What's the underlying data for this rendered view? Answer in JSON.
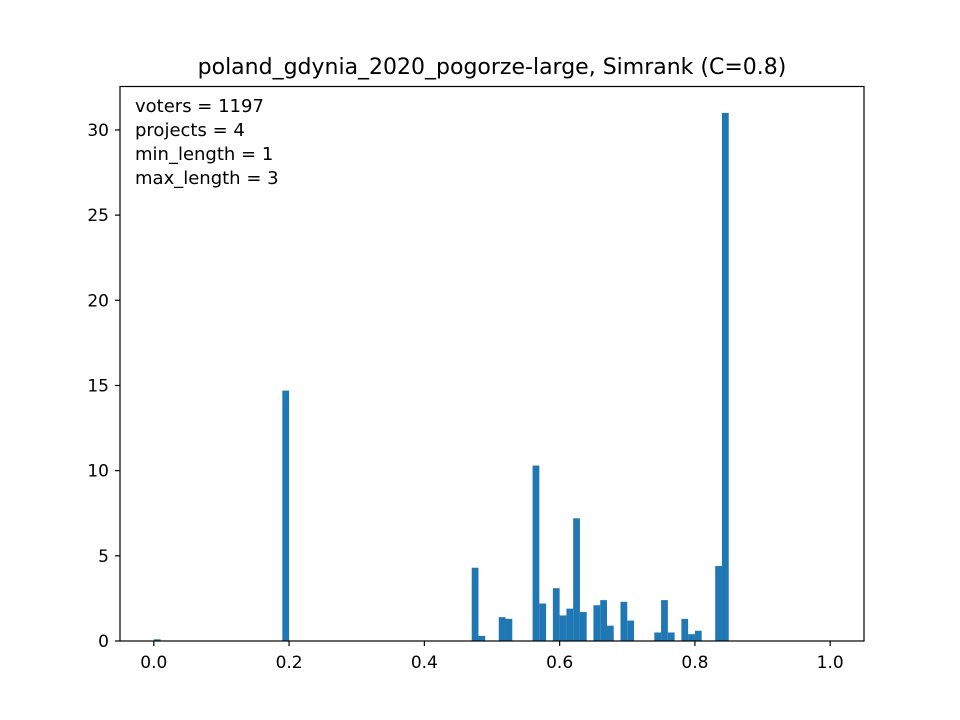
{
  "chart_data": {
    "type": "bar",
    "title": "poland_gdynia_2020_pogorze-large, Simrank (C=0.8)",
    "xlabel": "",
    "ylabel": "",
    "xlim": [
      -0.05,
      1.05
    ],
    "ylim": [
      0,
      32.55
    ],
    "xticks": [
      {
        "value": 0.0,
        "label": "0.0"
      },
      {
        "value": 0.2,
        "label": "0.2"
      },
      {
        "value": 0.4,
        "label": "0.4"
      },
      {
        "value": 0.6,
        "label": "0.6"
      },
      {
        "value": 0.8,
        "label": "0.8"
      },
      {
        "value": 1.0,
        "label": "1.0"
      }
    ],
    "yticks": [
      {
        "value": 0,
        "label": "0"
      },
      {
        "value": 5,
        "label": "5"
      },
      {
        "value": 10,
        "label": "10"
      },
      {
        "value": 15,
        "label": "15"
      },
      {
        "value": 20,
        "label": "20"
      },
      {
        "value": 25,
        "label": "25"
      },
      {
        "value": 30,
        "label": "30"
      }
    ],
    "bin_width": 0.01,
    "color": "#1f77b4",
    "bins": [
      {
        "x": 0.0,
        "y": 0.1
      },
      {
        "x": 0.19,
        "y": 14.7
      },
      {
        "x": 0.47,
        "y": 4.3
      },
      {
        "x": 0.48,
        "y": 0.3
      },
      {
        "x": 0.51,
        "y": 1.4
      },
      {
        "x": 0.52,
        "y": 1.3
      },
      {
        "x": 0.56,
        "y": 10.3
      },
      {
        "x": 0.57,
        "y": 2.2
      },
      {
        "x": 0.59,
        "y": 3.1
      },
      {
        "x": 0.6,
        "y": 1.5
      },
      {
        "x": 0.61,
        "y": 1.9
      },
      {
        "x": 0.62,
        "y": 7.2
      },
      {
        "x": 0.63,
        "y": 1.7
      },
      {
        "x": 0.65,
        "y": 2.1
      },
      {
        "x": 0.66,
        "y": 2.4
      },
      {
        "x": 0.67,
        "y": 0.9
      },
      {
        "x": 0.69,
        "y": 2.3
      },
      {
        "x": 0.7,
        "y": 1.2
      },
      {
        "x": 0.74,
        "y": 0.5
      },
      {
        "x": 0.75,
        "y": 2.4
      },
      {
        "x": 0.76,
        "y": 0.5
      },
      {
        "x": 0.78,
        "y": 1.3
      },
      {
        "x": 0.79,
        "y": 0.4
      },
      {
        "x": 0.8,
        "y": 0.6
      },
      {
        "x": 0.83,
        "y": 4.4
      },
      {
        "x": 0.84,
        "y": 31.0
      }
    ],
    "annotations": [
      "voters = 1197",
      "projects = 4",
      "min_length = 1",
      "max_length = 3"
    ],
    "grid": false,
    "legend": "none"
  }
}
